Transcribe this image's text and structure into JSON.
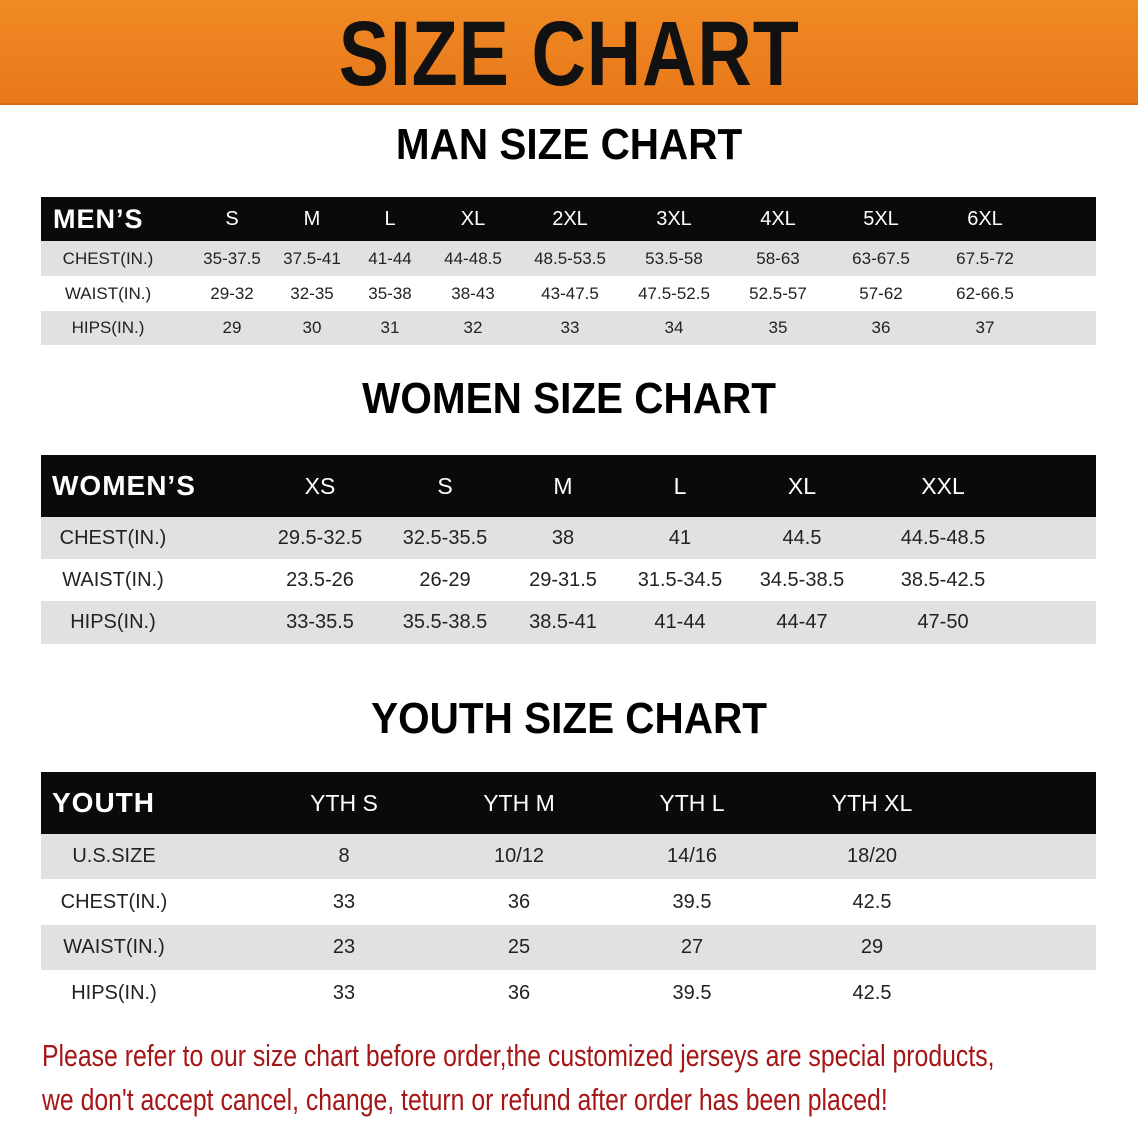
{
  "banner": {
    "title": "SIZE CHART",
    "color": "#ec801f"
  },
  "men": {
    "title": "MAN SIZE CHART",
    "corner": "MEN’S",
    "sizes": [
      "S",
      "M",
      "L",
      "XL",
      "2XL",
      "3XL",
      "4XL",
      "5XL",
      "6XL"
    ],
    "rows": [
      {
        "label": "CHEST(IN.)",
        "values": [
          "35-37.5",
          "37.5-41",
          "41-44",
          "44-48.5",
          "48.5-53.5",
          "53.5-58",
          "58-63",
          "63-67.5",
          "67.5-72"
        ]
      },
      {
        "label": "WAIST(IN.)",
        "values": [
          "29-32",
          "32-35",
          "35-38",
          "38-43",
          "43-47.5",
          "47.5-52.5",
          "52.5-57",
          "57-62",
          "62-66.5"
        ]
      },
      {
        "label": "HIPS(IN.)",
        "values": [
          "29",
          "30",
          "31",
          "32",
          "33",
          "34",
          "35",
          "36",
          "37"
        ]
      }
    ]
  },
  "women": {
    "title": "WOMEN SIZE CHART",
    "corner": "WOMEN’S",
    "sizes": [
      "XS",
      "S",
      "M",
      "L",
      "XL",
      "XXL"
    ],
    "rows": [
      {
        "label": "CHEST(IN.)",
        "values": [
          "29.5-32.5",
          "32.5-35.5",
          "38",
          "41",
          "44.5",
          "44.5-48.5"
        ]
      },
      {
        "label": "WAIST(IN.)",
        "values": [
          "23.5-26",
          "26-29",
          "29-31.5",
          "31.5-34.5",
          "34.5-38.5",
          "38.5-42.5"
        ]
      },
      {
        "label": "HIPS(IN.)",
        "values": [
          "33-35.5",
          "35.5-38.5",
          "38.5-41",
          "41-44",
          "44-47",
          "47-50"
        ]
      }
    ]
  },
  "youth": {
    "title": "YOUTH SIZE CHART",
    "corner": "YOUTH",
    "sizes": [
      "YTH S",
      "YTH M",
      "YTH L",
      "YTH XL"
    ],
    "rows": [
      {
        "label": "U.S.SIZE",
        "values": [
          "8",
          "10/12",
          "14/16",
          "18/20"
        ]
      },
      {
        "label": "CHEST(IN.)",
        "values": [
          "33",
          "36",
          "39.5",
          "42.5"
        ]
      },
      {
        "label": "WAIST(IN.)",
        "values": [
          "23",
          "25",
          "27",
          "29"
        ]
      },
      {
        "label": "HIPS(IN.)",
        "values": [
          "33",
          "36",
          "39.5",
          "42.5"
        ]
      }
    ]
  },
  "notice": {
    "line1": "Please refer to our size chart before order,the customized jerseys are special products,",
    "line2": "we don't accept cancel, change, teturn or refund after order has been placed!",
    "color": "#a51616"
  }
}
